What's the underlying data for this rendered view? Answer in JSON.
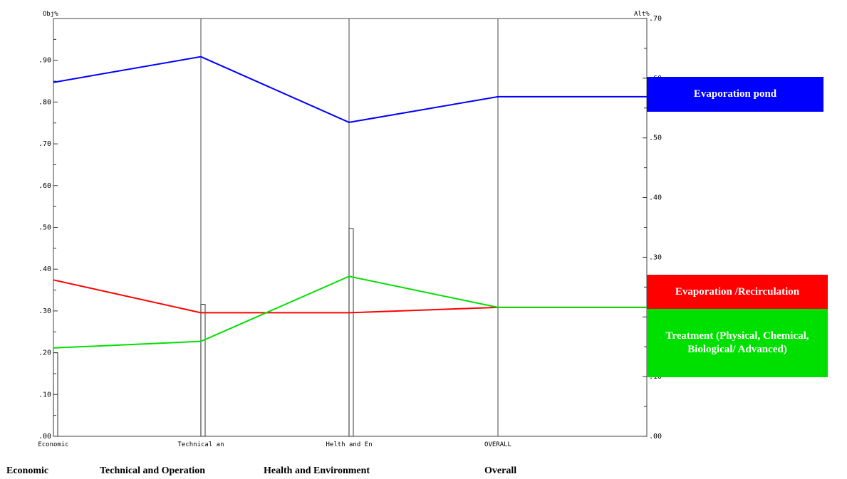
{
  "chart_data": {
    "type": "line",
    "left_axis_title": "Obj%",
    "right_axis_title": "Alt%",
    "categories": [
      "Economic",
      "Technical an",
      "Helth and En",
      "OVERALL"
    ],
    "left_ticks": [
      ".00",
      ".10",
      ".20",
      ".30",
      ".40",
      ".50",
      ".60",
      ".70",
      ".80",
      ".90"
    ],
    "right_ticks": [
      ".00",
      ".10",
      ".20",
      ".30",
      ".40",
      ".50",
      ".60",
      ".70"
    ],
    "left_ylim": [
      0,
      1.0
    ],
    "right_ylim": [
      0,
      0.7
    ],
    "objective_weights": [
      0.2,
      0.316,
      0.497,
      0
    ],
    "series": [
      {
        "name": "Evaporation pond",
        "color": "#0000ff",
        "values": [
          0.593,
          0.636,
          0.526,
          0.569
        ]
      },
      {
        "name": "Evaporation /Recirculation",
        "color": "#ff0000",
        "values": [
          0.262,
          0.207,
          0.207,
          0.216
        ]
      },
      {
        "name": "Treatment (Physical, Chemical, Biological/ Advanced)",
        "color": "#00e000",
        "values": [
          0.148,
          0.159,
          0.268,
          0.216
        ]
      }
    ]
  },
  "legend": [
    {
      "label": "Evaporation pond",
      "color": "#0000ff"
    },
    {
      "label": "Evaporation /Recirculation",
      "color": "#ff0000"
    },
    {
      "label": "Treatment (Physical, Chemical, Biological/ Advanced)",
      "color": "#00e000"
    }
  ],
  "bottom_labels": [
    "Economic",
    "Technical and Operation",
    "Health and Environment",
    "Overall"
  ]
}
